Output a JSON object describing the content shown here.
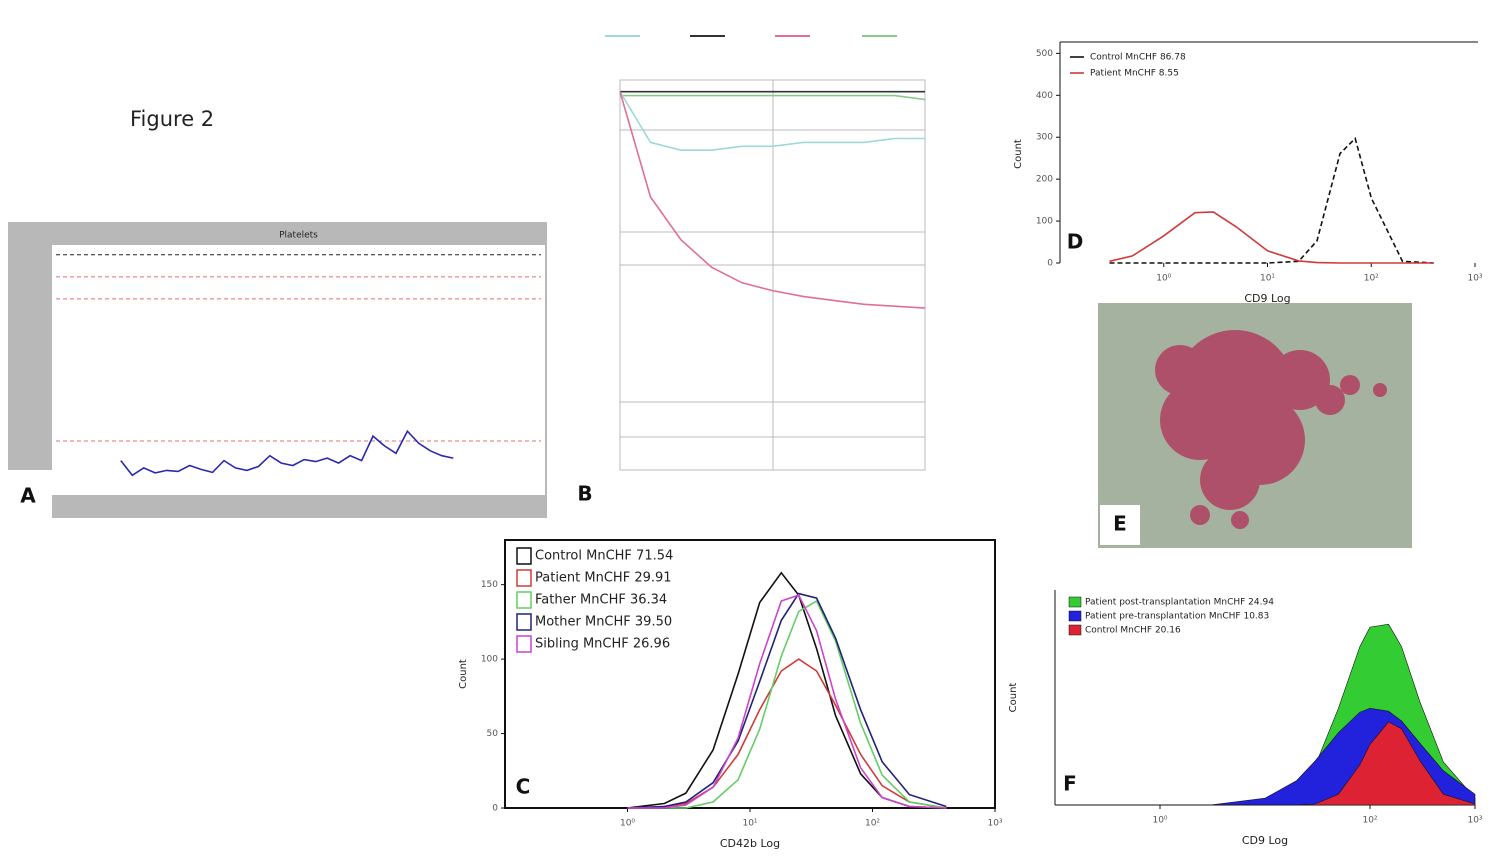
{
  "title": "Figure 2",
  "image_label": "E",
  "chart_data": [
    {
      "type": "line",
      "label": "A",
      "title": "Platelets",
      "x": [
        0,
        1,
        2,
        3,
        4,
        5,
        6,
        7,
        8,
        9,
        10,
        11,
        12,
        13,
        14,
        15,
        16,
        17,
        18,
        19,
        20,
        21,
        22,
        23,
        24,
        25,
        26,
        27,
        28,
        29
      ],
      "xlim": [
        -6,
        37
      ],
      "ylim": [
        0,
        500
      ],
      "hlines": [
        {
          "value": 480,
          "color": "#222222"
        },
        {
          "value": 435,
          "color": "#e07070"
        },
        {
          "value": 390,
          "color": "#e07070"
        },
        {
          "value": 100,
          "color": "#e07070"
        }
      ],
      "series": [
        {
          "color": "#2a2ab0",
          "values": [
            60,
            30,
            45,
            35,
            40,
            38,
            50,
            42,
            36,
            60,
            45,
            40,
            48,
            70,
            55,
            50,
            62,
            58,
            65,
            55,
            70,
            60,
            110,
            90,
            75,
            120,
            95,
            80,
            70,
            65
          ]
        }
      ]
    },
    {
      "type": "line",
      "label": "B",
      "x": [
        0,
        1,
        2,
        3,
        4,
        5,
        6,
        7,
        8,
        9,
        10
      ],
      "xlim": [
        0,
        10
      ],
      "ylim": [
        0,
        100
      ],
      "series": [
        {
          "color": "#333333",
          "values": [
            97,
            97,
            97,
            97,
            97,
            97,
            97,
            97,
            97,
            97,
            97
          ]
        },
        {
          "color": "#88c888",
          "values": [
            96,
            96,
            96,
            96,
            96,
            96,
            96,
            96,
            96,
            96,
            95
          ]
        },
        {
          "color": "#9fd8d8",
          "values": [
            97,
            84,
            82,
            82,
            83,
            83,
            84,
            84,
            84,
            85,
            85
          ]
        },
        {
          "color": "#e07090",
          "values": [
            97,
            70,
            59,
            52,
            48,
            46,
            44.5,
            43.5,
            42.5,
            42,
            41.5
          ]
        }
      ]
    },
    {
      "type": "line",
      "label": "C",
      "x_label": "CD42b Log",
      "y_label": "Count",
      "log_x": true,
      "x": [
        1,
        2,
        3,
        5,
        8,
        12,
        18,
        25,
        35,
        50,
        80,
        120,
        200,
        400
      ],
      "xlim": [
        0.1,
        1000
      ],
      "ylim": [
        0,
        180
      ],
      "xticks": [
        {
          "value": 1,
          "label": "10⁰"
        },
        {
          "value": 10,
          "label": "10¹"
        },
        {
          "value": 100,
          "label": "10²"
        },
        {
          "value": 1000,
          "label": "10³"
        }
      ],
      "yticks": [
        0,
        50,
        100,
        150
      ],
      "legend": "top-left",
      "series": [
        {
          "name": "Control MnCHF 71.54",
          "color": "#111111",
          "values": [
            0,
            3,
            10,
            39,
            90,
            138,
            158,
            143,
            107,
            62,
            23,
            7,
            1,
            0
          ]
        },
        {
          "name": "Patient MnCHF 29.91",
          "color": "#d03a3a",
          "values": [
            0,
            1,
            3,
            14,
            36,
            66,
            92,
            100,
            92,
            69,
            36,
            15,
            4,
            0
          ]
        },
        {
          "name": "Father MnCHF 36.34",
          "color": "#66cc66",
          "values": [
            0,
            0,
            0,
            4,
            19,
            53,
            102,
            132,
            139,
            112,
            57,
            22,
            4,
            0
          ]
        },
        {
          "name": "Mother MnCHF 39.50",
          "color": "#22227a",
          "values": [
            0,
            1,
            4,
            17,
            45,
            85,
            126,
            144,
            141,
            114,
            66,
            31,
            9,
            1
          ]
        },
        {
          "name": "Sibling MnCHF 26.96",
          "color": "#cc44cc",
          "values": [
            0,
            0,
            2,
            14,
            47,
            97,
            139,
            143,
            119,
            73,
            27,
            7,
            1,
            0
          ]
        }
      ]
    },
    {
      "type": "line",
      "label": "D",
      "x_label": "CD9 Log",
      "y_label": "Count",
      "log_x": true,
      "x": [
        0.3,
        0.5,
        1,
        2,
        3,
        5,
        10,
        20,
        30,
        50,
        70,
        100,
        200,
        400
      ],
      "xlim": [
        0.1,
        1000
      ],
      "ylim": [
        0,
        520
      ],
      "xticks": [
        {
          "value": 1,
          "label": "10⁰"
        },
        {
          "value": 10,
          "label": "10¹"
        },
        {
          "value": 100,
          "label": "10²"
        },
        {
          "value": 1000,
          "label": "10³"
        }
      ],
      "yticks": [
        0,
        100,
        200,
        300,
        400,
        500
      ],
      "legend": "top-left",
      "series": [
        {
          "name": "Control MnCHF 86.78",
          "color": "#111111",
          "dashed": true,
          "values": [
            0,
            0,
            0,
            0,
            0,
            0,
            0,
            4,
            53,
            261,
            297,
            155,
            4,
            0
          ]
        },
        {
          "name": "Patient MnCHF 8.55",
          "color": "#d03a3a",
          "values": [
            4,
            17,
            65,
            120,
            122,
            86,
            29,
            5,
            1,
            0,
            0,
            0,
            0,
            0
          ]
        }
      ]
    },
    {
      "type": "area",
      "label": "F",
      "x_label": "CD9 Log",
      "y_label": "Count",
      "log_x": true,
      "x": [
        1,
        3,
        10,
        20,
        30,
        50,
        80,
        100,
        150,
        200,
        300,
        500,
        1000
      ],
      "xlim": [
        0.1,
        1000
      ],
      "ylim": [
        0,
        220
      ],
      "xticks": [
        {
          "value": 1,
          "label": "10⁰"
        },
        {
          "value": 100,
          "label": "10²"
        },
        {
          "value": 1000,
          "label": "10³"
        }
      ],
      "legend": "top-left",
      "series": [
        {
          "name": "Patient post-transplantation MnCHF 24.94",
          "color": "#33cc33",
          "values": [
            0,
            0,
            1,
            14,
            40,
            99,
            162,
            182,
            185,
            162,
            105,
            44,
            7
          ]
        },
        {
          "name": "Patient pre-transplantation MnCHF 10.83",
          "color": "#2222dd",
          "values": [
            0,
            0,
            7,
            25,
            45,
            74,
            95,
            99,
            96,
            86,
            63,
            35,
            11
          ]
        },
        {
          "name": "Control MnCHF 20.16",
          "color": "#dd2233",
          "values": [
            0,
            0,
            0,
            0,
            1,
            11,
            41,
            62,
            85,
            78,
            45,
            11,
            1
          ]
        }
      ]
    }
  ]
}
